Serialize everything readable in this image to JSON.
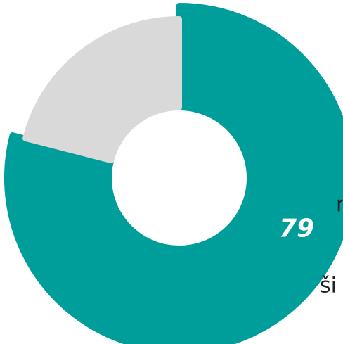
{
  "chart_data": {
    "type": "donut",
    "values": [
      79,
      21
    ],
    "colors": [
      "#009e9a",
      "#d9d9d9"
    ]
  },
  "fragments": [
    "n.",
    "ši"
  ]
}
